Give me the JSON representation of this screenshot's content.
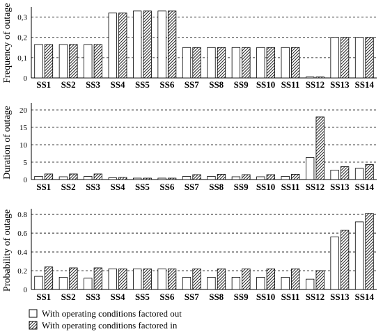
{
  "chart_data": [
    {
      "type": "bar",
      "ylabel": "Frequency of outage",
      "ylim": [
        0,
        0.35
      ],
      "yticks": [
        "0",
        "0,1",
        "0,2",
        "0,3"
      ],
      "grid": "horizontal dashed",
      "categories": [
        "SS1",
        "SS2",
        "SS3",
        "SS4",
        "SS5",
        "SS6",
        "SS7",
        "SS8",
        "SS9",
        "SS10",
        "SS11",
        "SS12",
        "SS13",
        "SS14"
      ],
      "series": [
        {
          "name": "With operating conditions factored out",
          "values": [
            0.165,
            0.165,
            0.165,
            0.32,
            0.33,
            0.33,
            0.15,
            0.15,
            0.15,
            0.15,
            0.15,
            0.005,
            0.2,
            0.2
          ]
        },
        {
          "name": "With operating conditions factored in",
          "values": [
            0.165,
            0.165,
            0.165,
            0.32,
            0.33,
            0.33,
            0.15,
            0.15,
            0.15,
            0.15,
            0.15,
            0.005,
            0.2,
            0.2
          ]
        }
      ]
    },
    {
      "type": "bar",
      "ylabel": "Duration of outage",
      "ylim": [
        0,
        22
      ],
      "yticks": [
        "0",
        "5",
        "10",
        "15",
        "20"
      ],
      "grid": "horizontal dashed",
      "categories": [
        "SS1",
        "SS2",
        "SS3",
        "SS4",
        "SS5",
        "SS6",
        "SS7",
        "SS8",
        "SS9",
        "SS10",
        "SS11",
        "SS12",
        "SS13",
        "SS14"
      ],
      "series": [
        {
          "name": "With operating conditions factored out",
          "values": [
            0.9,
            0.8,
            0.9,
            0.5,
            0.4,
            0.4,
            0.9,
            0.9,
            0.8,
            0.8,
            0.9,
            6.3,
            2.7,
            3.2
          ]
        },
        {
          "name": "With operating conditions factored in",
          "values": [
            1.6,
            1.6,
            1.6,
            0.6,
            0.4,
            0.4,
            1.4,
            1.5,
            1.4,
            1.4,
            1.5,
            18.0,
            3.7,
            4.3
          ]
        }
      ]
    },
    {
      "type": "bar",
      "ylabel": "Probability of outage",
      "ylim": [
        0,
        0.86
      ],
      "yticks": [
        "0",
        "0.2",
        "0.4",
        "0.6",
        "0.8"
      ],
      "grid": "horizontal dashed",
      "categories": [
        "SS1",
        "SS2",
        "SS3",
        "SS4",
        "SS5",
        "SS6",
        "SS7",
        "SS8",
        "SS9",
        "SS10",
        "SS11",
        "SS12",
        "SS13",
        "SS14"
      ],
      "series": [
        {
          "name": "With operating conditions factored out",
          "values": [
            0.14,
            0.13,
            0.12,
            0.22,
            0.22,
            0.22,
            0.13,
            0.13,
            0.13,
            0.13,
            0.13,
            0.11,
            0.56,
            0.72
          ]
        },
        {
          "name": "With operating conditions factored in",
          "values": [
            0.24,
            0.23,
            0.23,
            0.22,
            0.22,
            0.22,
            0.22,
            0.22,
            0.22,
            0.22,
            0.22,
            0.2,
            0.63,
            0.81
          ]
        }
      ]
    }
  ],
  "legend": [
    {
      "label": "With operating conditions factored out",
      "style": "open"
    },
    {
      "label": "With operating conditions factored in",
      "style": "hatched"
    }
  ]
}
